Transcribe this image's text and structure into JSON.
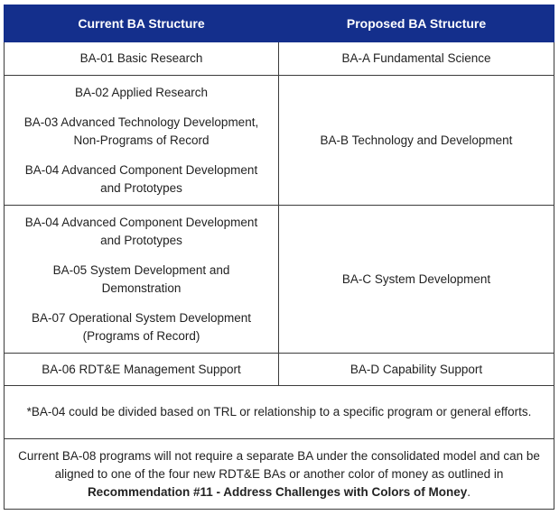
{
  "header": {
    "current": "Current BA Structure",
    "proposed": "Proposed BA Structure"
  },
  "rows": [
    {
      "current": [
        "BA-01 Basic Research"
      ],
      "proposed": "BA-A Fundamental Science"
    },
    {
      "current": [
        "BA-02 Applied Research",
        "BA-03 Advanced Technology Development,\nNon-Programs of Record",
        "BA-04 Advanced Component Development\nand Prototypes"
      ],
      "proposed": "BA-B Technology and Development"
    },
    {
      "current": [
        "BA-04 Advanced Component Development\nand Prototypes",
        "BA-05 System Development and\nDemonstration",
        "BA-07 Operational System Development\n(Programs of Record)"
      ],
      "proposed": "BA-C System Development"
    },
    {
      "current": [
        "BA-06 RDT&E Management Support"
      ],
      "proposed": "BA-D Capability Support"
    }
  ],
  "footnote": "*BA-04 could be divided based on TRL or relationship to a specific program or general efforts.",
  "note": {
    "text": "Current BA-08 programs will not require a separate BA under the consolidated model and can be aligned to one of the four new RDT&E BAs or another color of money as outlined in",
    "bold": "Recommendation #11 - Address Challenges with Colors of Money",
    "end": "."
  }
}
